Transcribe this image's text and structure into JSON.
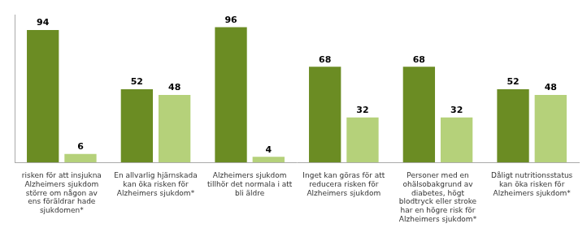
{
  "chart_data": {
    "type": "bar",
    "categories": [
      "risken för att insjukna\nAlzheimers sjukdom\nstörre om någon av\nens föräldrar hade\nsjukdomen*",
      "En allvarlig hjärnskada\nkan öka risken för\nAlzheimers sjukdom*",
      "Alzheimers sjukdom\ntillhör det normala i att\nbli äldre",
      "Inget kan göras för att\nreducera risken för\nAlzheimers sjukdom",
      "Personer med en\nohälsobakgrund av\ndiabetes, högt\nblodtryck eller stroke\nhar en högre risk för\nAlzheimers sjukdom*",
      "Dåligt nutritionsstatus\nkan öka risken för\nAlzheimers sjukdom*"
    ],
    "series": [
      {
        "color": "#6b8c23",
        "values": [
          94,
          52,
          96,
          68,
          68,
          52
        ]
      },
      {
        "color": "#b5d17a",
        "values": [
          6,
          48,
          4,
          32,
          32,
          48
        ]
      }
    ],
    "ylim": [
      0,
      105
    ],
    "grid": false,
    "data_labels": true,
    "tick_labels": "x"
  }
}
